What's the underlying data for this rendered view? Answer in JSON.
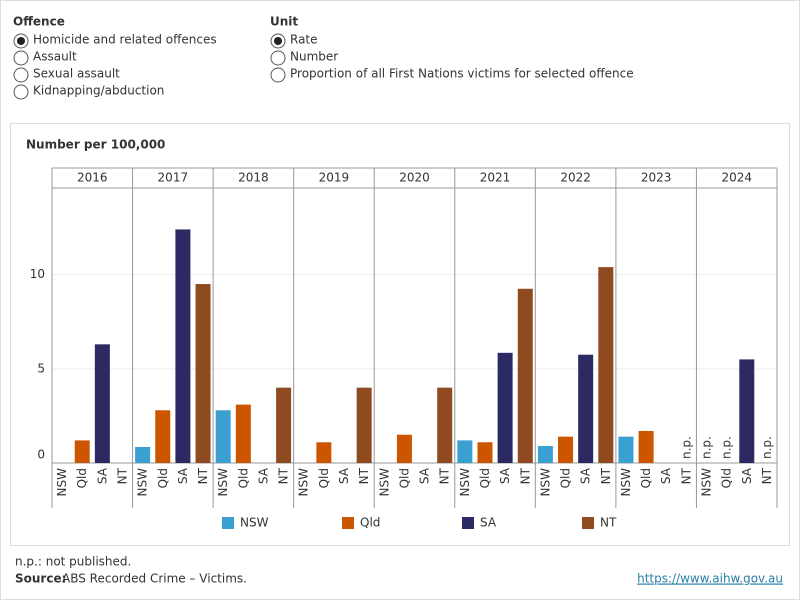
{
  "controls": [
    {
      "label": "Offence",
      "selected": 0,
      "options": [
        "Homicide and related offences",
        "Assault",
        "Sexual assault",
        "Kidnapping/abduction"
      ]
    },
    {
      "label": "Unit",
      "selected": 0,
      "options": [
        "Rate",
        "Number",
        "Proportion of all First Nations victims for selected offence"
      ]
    }
  ],
  "chart_data": {
    "type": "bar",
    "y_label": "Number per 100,000",
    "categories": [
      "2016",
      "2017",
      "2018",
      "2019",
      "2020",
      "2021",
      "2022",
      "2023",
      "2024"
    ],
    "series": [
      {
        "name": "NSW",
        "color": "#3a9fd1",
        "values": [
          null,
          0.85,
          2.8,
          null,
          null,
          1.2,
          0.9,
          1.4,
          null
        ],
        "value_labels": [
          null,
          null,
          null,
          null,
          null,
          null,
          null,
          null,
          "n.p."
        ]
      },
      {
        "name": "Qld",
        "color": "#cc5500",
        "values": [
          1.2,
          2.8,
          3.1,
          1.1,
          1.5,
          1.1,
          1.4,
          1.7,
          null
        ],
        "value_labels": [
          null,
          null,
          null,
          null,
          null,
          null,
          null,
          null,
          "n.p."
        ]
      },
      {
        "name": "SA",
        "color": "#2b2a62",
        "values": [
          6.3,
          12.4,
          null,
          null,
          null,
          5.85,
          5.75,
          null,
          5.5
        ]
      },
      {
        "name": "NT",
        "color": "#8f4a20",
        "values": [
          null,
          9.5,
          4.0,
          4.0,
          4.0,
          9.25,
          10.4,
          null,
          null
        ],
        "value_labels": [
          null,
          null,
          null,
          null,
          null,
          null,
          null,
          "n.p.",
          "n.p."
        ]
      }
    ],
    "ylim": [
      0,
      14.6
    ],
    "yticks": [
      0,
      5,
      10
    ],
    "grid": true
  },
  "footer": {
    "note": "n.p.: not published.",
    "source_label": "Source:",
    "source": "ABS Recorded Crime – Victims.",
    "link": "https://www.aihw.gov.au"
  }
}
